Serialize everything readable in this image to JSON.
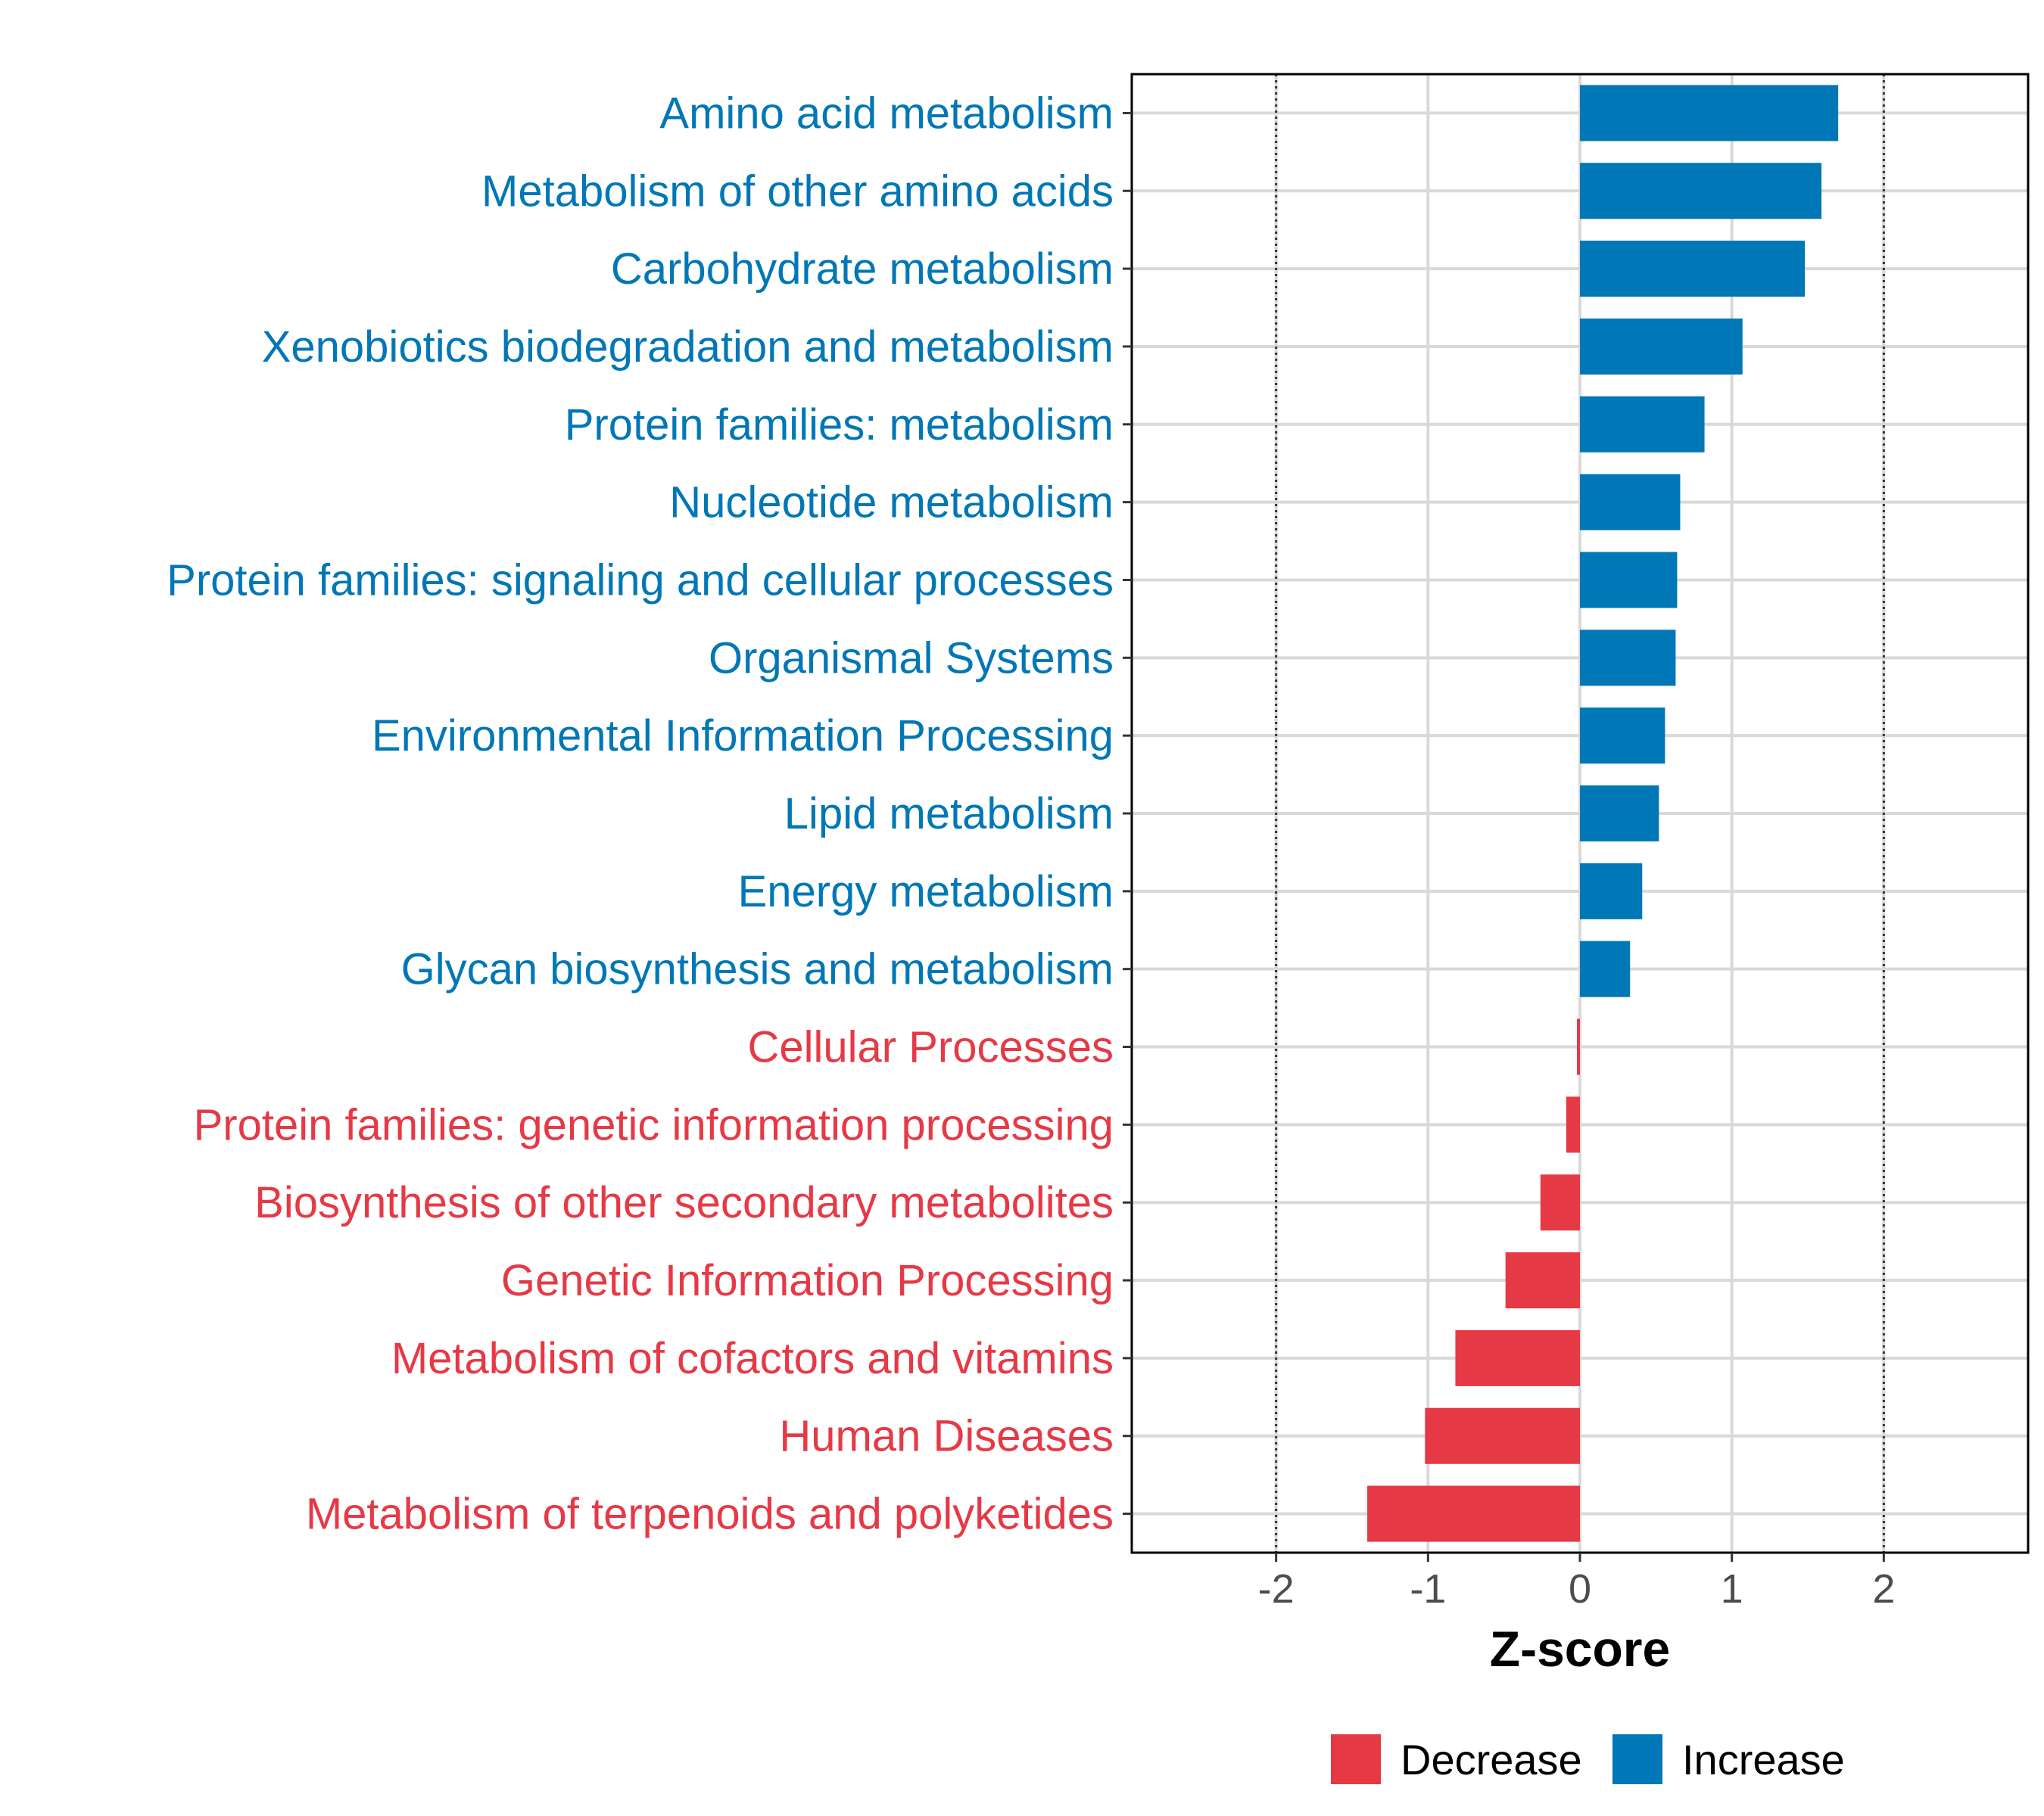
{
  "chart_data": {
    "type": "bar",
    "orientation": "horizontal",
    "title": "",
    "xlabel": "Z-score",
    "ylabel": "",
    "xlim": [
      -2.95,
      2.95
    ],
    "xticks": [
      -2,
      -1,
      0,
      1,
      2
    ],
    "xtick_labels": [
      "-2",
      "-1",
      "0",
      "1",
      "2"
    ],
    "reference_lines": [
      -2,
      2
    ],
    "grid": true,
    "categories": [
      "Amino acid metabolism",
      "Metabolism of other amino acids",
      "Carbohydrate metabolism",
      "Xenobiotics biodegradation and metabolism",
      "Protein families: metabolism",
      "Nucleotide metabolism",
      "Protein families: signaling and cellular processes",
      "Organismal Systems",
      "Environmental Information Processing",
      "Lipid metabolism",
      "Energy metabolism",
      "Glycan biosynthesis and metabolism",
      "Cellular Processes",
      "Protein families: genetic information processing",
      "Biosynthesis of other secondary metabolites",
      "Genetic Information Processing",
      "Metabolism of cofactors and vitamins",
      "Human Diseases",
      "Metabolism of terpenoids and polyketides"
    ],
    "values": [
      1.7,
      1.59,
      1.48,
      1.07,
      0.82,
      0.66,
      0.64,
      0.63,
      0.56,
      0.52,
      0.41,
      0.33,
      -0.02,
      -0.09,
      -0.26,
      -0.49,
      -0.82,
      -1.02,
      -1.4
    ],
    "groups": [
      "Increase",
      "Increase",
      "Increase",
      "Increase",
      "Increase",
      "Increase",
      "Increase",
      "Increase",
      "Increase",
      "Increase",
      "Increase",
      "Increase",
      "Decrease",
      "Decrease",
      "Decrease",
      "Decrease",
      "Decrease",
      "Decrease",
      "Decrease"
    ],
    "legend": {
      "position": "bottom",
      "entries": [
        {
          "label": "Decrease",
          "color": "#e63946"
        },
        {
          "label": "Increase",
          "color": "#0077b6"
        }
      ]
    }
  }
}
